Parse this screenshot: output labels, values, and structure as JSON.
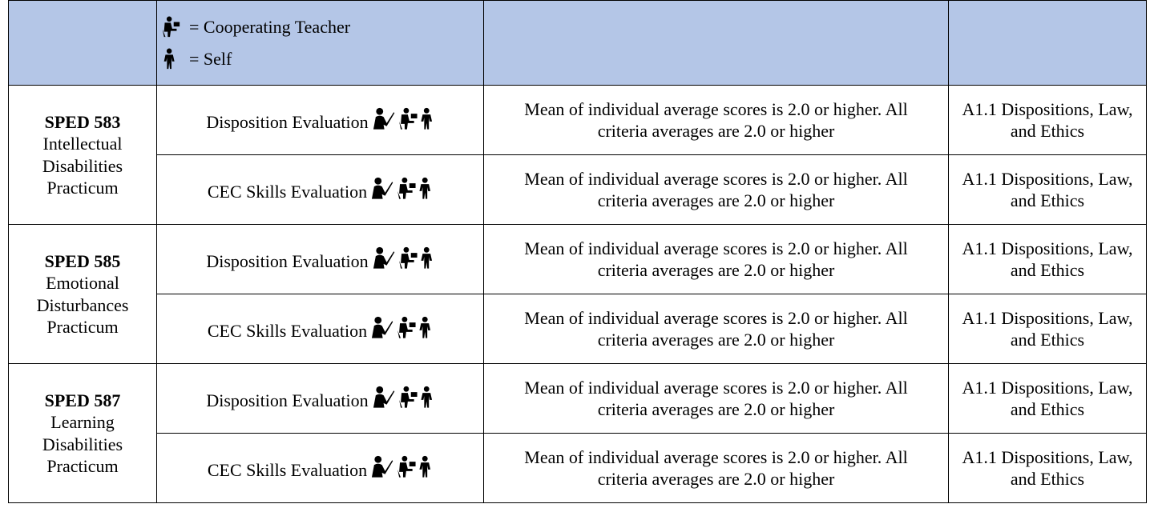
{
  "legend": [
    {
      "label": "= Cooperating Teacher"
    },
    {
      "label": "= Self"
    }
  ],
  "courses": [
    {
      "code": "SPED 583",
      "name": "Intellectual Disabilities Practicum",
      "rows": [
        {
          "assessment": "Disposition Evaluation",
          "criteria": "Mean of individual average scores is 2.0 or higher. All criteria averages are 2.0 or higher",
          "standard": "A1.1 Dispositions, Law, and Ethics"
        },
        {
          "assessment": "CEC Skills Evaluation",
          "criteria": "Mean of individual average scores is 2.0 or higher. All criteria averages are 2.0 or higher",
          "standard": "A1.1 Dispositions, Law, and Ethics"
        }
      ]
    },
    {
      "code": "SPED 585",
      "name": "Emotional Disturbances Practicum",
      "rows": [
        {
          "assessment": "Disposition Evaluation",
          "criteria": "Mean of individual average scores is 2.0 or higher. All criteria averages are 2.0 or higher",
          "standard": "A1.1 Dispositions, Law, and Ethics"
        },
        {
          "assessment": "CEC Skills Evaluation",
          "criteria": "Mean of individual average scores is 2.0 or higher. All criteria averages are 2.0 or higher",
          "standard": "A1.1 Dispositions, Law, and Ethics"
        }
      ]
    },
    {
      "code": "SPED 587",
      "name": "Learning Disabilities Practicum",
      "rows": [
        {
          "assessment": "Disposition Evaluation",
          "criteria": "Mean of individual average scores is 2.0 or higher. All criteria averages are 2.0 or higher",
          "standard": "A1.1 Dispositions, Law, and Ethics"
        },
        {
          "assessment": "CEC Skills Evaluation",
          "criteria": "Mean of individual average scores is 2.0 or higher. All criteria averages are 2.0 or higher",
          "standard": "A1.1 Dispositions, Law, and Ethics"
        }
      ]
    }
  ]
}
